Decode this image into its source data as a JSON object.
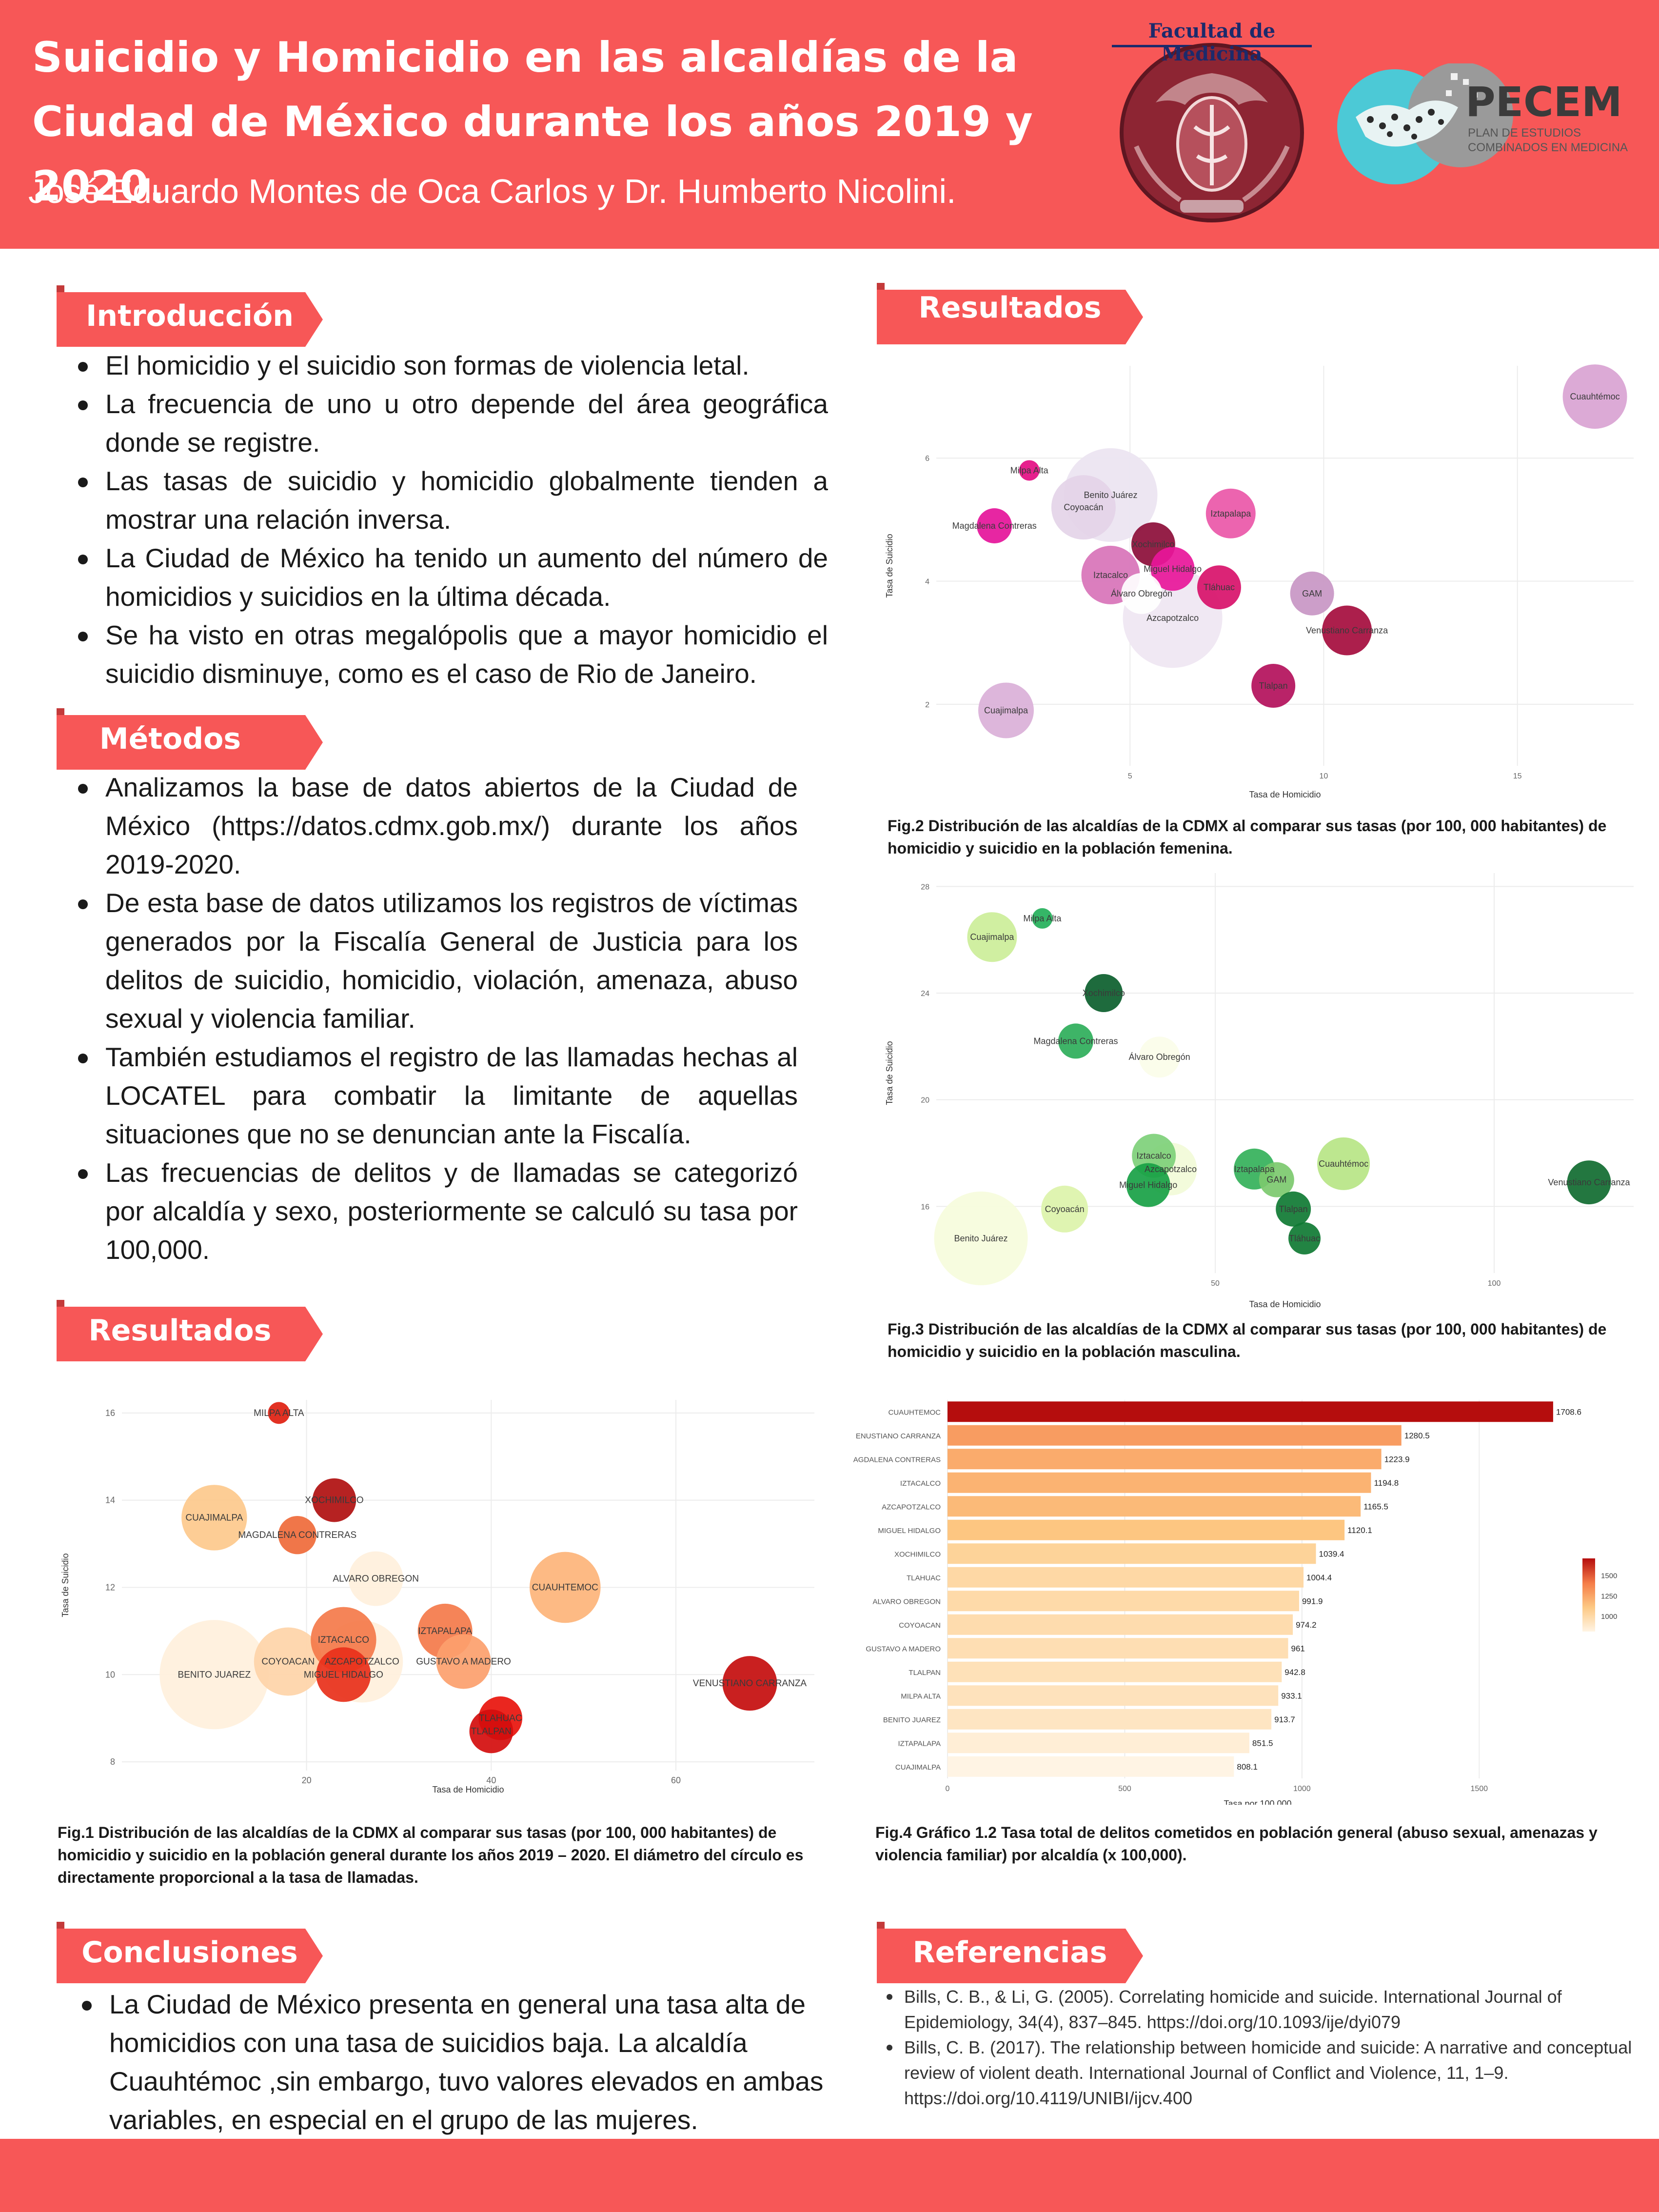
{
  "header": {
    "title_line1": "Suicidio y Homicidio en las alcaldías de la",
    "title_line2": "Ciudad de México durante los años 2019 y 2020.",
    "authors": "José Eduardo Montes de Oca Carlos y Dr. Humberto Nicolini.",
    "logo_left_text": "Facultad de Medicina",
    "logo_right_title": "PECEM",
    "logo_right_sub": "PLAN DE ESTUDIOS COMBINADOS EN MEDICINA"
  },
  "introduccion": {
    "heading": "Introducción",
    "items": [
      "El homicidio y el suicidio son formas de violencia letal.",
      "La frecuencia de uno u otro depende del área geográfica donde se registre.",
      "Las tasas de suicidio y homicidio globalmente tienden a mostrar una relación inversa.",
      "La Ciudad de México ha tenido un aumento del número de homicidios y suicidios en la última década.",
      "Se ha visto en otras megalópolis que a mayor homicidio el suicidio disminuye, como es el caso de Rio de Janeiro."
    ]
  },
  "metodos": {
    "heading": "Métodos",
    "items": [
      "Analizamos la base de datos abiertos de la Ciudad de México (https://datos.cdmx.gob.mx/) durante los años 2019-2020.",
      "De esta base de datos utilizamos los registros de víctimas generados por la Fiscalía General de Justicia para los delitos de suicidio, homicidio, violación, amenaza, abuso sexual y violencia familiar.",
      "También estudiamos el registro de las llamadas hechas al LOCATEL para combatir la limitante de aquellas situaciones que no se denuncian ante la Fiscalía.",
      "Las frecuencias de delitos y de llamadas se categorizó por alcaldía y sexo, posteriormente se calculó su tasa por 100,000."
    ]
  },
  "resultados_left": {
    "heading": "Resultados"
  },
  "resultados_right": {
    "heading": "Resultados"
  },
  "conclusiones": {
    "heading": "Conclusiones",
    "items": [
      "La Ciudad de México presenta en general una tasa alta de homicidios con una tasa de suicidios baja. La alcaldía Cuauhtémoc ,sin embargo, tuvo valores elevados en ambas variables, en especial en el grupo de las mujeres."
    ]
  },
  "referencias": {
    "heading": "Referencias",
    "items": [
      "Bills, C. B., & Li, G. (2005). Correlating homicide and suicide. International Journal of Epidemiology, 34(4), 837–845. https://doi.org/10.1093/ije/dyi079",
      "Bills, C. B. (2017). The relationship between homicide and suicide: A narrative and conceptual review of violent death. International Journal of Conflict and Violence, 11, 1–9. https://doi.org/10.4119/UNIBI/ijcv.400"
    ]
  },
  "captions": {
    "fig1": "Fig.1 Distribución de las alcaldías de la CDMX al comparar sus tasas (por 100, 000 habitantes) de homicidio y suicidio en la población general durante los años 2019 – 2020. El diámetro del círculo es directamente proporcional a la tasa de llamadas.",
    "fig2": "Fig.2 Distribución de las alcaldías de la CDMX al comparar sus tasas (por 100, 000 habitantes) de homicidio y suicidio en la población femenina.",
    "fig3": "Fig.3 Distribución de las alcaldías de la CDMX al comparar sus tasas (por 100, 000 habitantes) de homicidio y suicidio en la población masculina.",
    "fig4": "Fig.4 Gráfico 1.2 Tasa total de delitos cometidos en población general (abuso sexual, amenazas y violencia familiar) por alcaldía (x 100,000)."
  },
  "chart_data": [
    {
      "id": "fig1",
      "type": "scatter",
      "xlabel": "Tasa de Homicidio",
      "ylabel": "Tasa de Suicidio",
      "xlim": [
        0,
        75
      ],
      "ylim": [
        7.8,
        16.3
      ],
      "xticks": [
        20,
        40,
        60
      ],
      "yticks": [
        8,
        10,
        12,
        14,
        16
      ],
      "grid": true,
      "points": [
        {
          "label": "MILPA ALTA",
          "x": 17,
          "y": 16.0,
          "size": 0.8,
          "color": "#e01f10"
        },
        {
          "label": "XOCHIMILCO",
          "x": 23,
          "y": 14.0,
          "size": 1.6,
          "color": "#b00f0f"
        },
        {
          "label": "CUAJIMALPA",
          "x": 10,
          "y": 13.6,
          "size": 2.4,
          "color": "#fdc98c"
        },
        {
          "label": "MAGDALENA CONTRERAS",
          "x": 19,
          "y": 13.2,
          "size": 1.4,
          "color": "#ef6a3a"
        },
        {
          "label": "ALVARO OBREGON",
          "x": 27.5,
          "y": 12.2,
          "size": 2.0,
          "color": "#fff0dc"
        },
        {
          "label": "CUAUHTEMOC",
          "x": 48,
          "y": 12.0,
          "size": 2.6,
          "color": "#fdb47a"
        },
        {
          "label": "IZTAPALAPA",
          "x": 35,
          "y": 11.0,
          "size": 2.0,
          "color": "#f4794a"
        },
        {
          "label": "IZTACALCO",
          "x": 24,
          "y": 10.8,
          "size": 2.4,
          "color": "#f4794a"
        },
        {
          "label": "GUSTAVO A MADERO",
          "x": 37,
          "y": 10.3,
          "size": 2.0,
          "color": "#fca06c"
        },
        {
          "label": "COYOACAN",
          "x": 18,
          "y": 10.3,
          "size": 2.5,
          "color": "#fed4a8"
        },
        {
          "label": "AZCAPOTZALCO",
          "x": 26,
          "y": 10.3,
          "size": 3.0,
          "color": "#fff0dc"
        },
        {
          "label": "MIGUEL HIDALGO",
          "x": 24,
          "y": 10.0,
          "size": 2.0,
          "color": "#e8301a"
        },
        {
          "label": "BENITO JUAREZ",
          "x": 10,
          "y": 10.0,
          "size": 4.0,
          "color": "#fff0dc"
        },
        {
          "label": "VENUSTIANO CARRANZA",
          "x": 68,
          "y": 9.8,
          "size": 2.0,
          "color": "#c40d0d"
        },
        {
          "label": "TLAHUAC",
          "x": 41,
          "y": 9.0,
          "size": 1.6,
          "color": "#e8140c"
        },
        {
          "label": "TLALPAN",
          "x": 40,
          "y": 8.7,
          "size": 1.6,
          "color": "#d40d0d"
        }
      ]
    },
    {
      "id": "fig2",
      "type": "scatter",
      "xlabel": "Tasa de Homicidio",
      "ylabel": "Tasa de Suicidio",
      "xlim": [
        0,
        18
      ],
      "ylim": [
        1.0,
        7.5
      ],
      "xticks": [
        5,
        10,
        15
      ],
      "yticks": [
        2,
        4,
        6
      ],
      "grid": true,
      "points": [
        {
          "label": "Cuauhtémoc",
          "x": 17.0,
          "y": 7.0,
          "size": 2.2,
          "color": "#d9a3d3"
        },
        {
          "label": "Milpa Alta",
          "x": 2.4,
          "y": 5.8,
          "size": 0.7,
          "color": "#e40d83"
        },
        {
          "label": "Benito Juárez",
          "x": 4.5,
          "y": 5.4,
          "size": 3.2,
          "color": "#ece4f1"
        },
        {
          "label": "Coyoacán",
          "x": 3.8,
          "y": 5.2,
          "size": 2.2,
          "color": "#e4d4e8"
        },
        {
          "label": "Iztapalapa",
          "x": 7.6,
          "y": 5.1,
          "size": 1.7,
          "color": "#ea57a8"
        },
        {
          "label": "Magdalena Contreras",
          "x": 1.5,
          "y": 4.9,
          "size": 1.2,
          "color": "#e5149a"
        },
        {
          "label": "Xochimilco",
          "x": 5.6,
          "y": 4.6,
          "size": 1.5,
          "color": "#8c0d38"
        },
        {
          "label": "Miguel Hidalgo",
          "x": 6.1,
          "y": 4.2,
          "size": 1.5,
          "color": "#e8169a"
        },
        {
          "label": "Iztacalco",
          "x": 4.5,
          "y": 4.1,
          "size": 2.0,
          "color": "#d873b9"
        },
        {
          "label": "Tláhuac",
          "x": 7.3,
          "y": 3.9,
          "size": 1.5,
          "color": "#d8116a"
        },
        {
          "label": "GAM",
          "x": 9.7,
          "y": 3.8,
          "size": 1.5,
          "color": "#c896c4"
        },
        {
          "label": "Álvaro Obregón",
          "x": 5.3,
          "y": 3.8,
          "size": 1.4,
          "color": "#ffffff"
        },
        {
          "label": "Azcapotzalco",
          "x": 6.1,
          "y": 3.4,
          "size": 3.4,
          "color": "#efe6f2"
        },
        {
          "label": "Venustiano Carranza",
          "x": 10.6,
          "y": 3.2,
          "size": 1.7,
          "color": "#a50c3d"
        },
        {
          "label": "Tlalpan",
          "x": 8.7,
          "y": 2.3,
          "size": 1.5,
          "color": "#b3105b"
        },
        {
          "label": "Cuajimalpa",
          "x": 1.8,
          "y": 1.9,
          "size": 1.9,
          "color": "#dab0d8"
        }
      ]
    },
    {
      "id": "fig3",
      "type": "scatter",
      "xlabel": "Tasa de Homicidio",
      "ylabel": "Tasa de Suicidio",
      "xlim": [
        0,
        125
      ],
      "ylim": [
        13.5,
        28.5
      ],
      "xticks": [
        50,
        100
      ],
      "yticks": [
        16,
        20,
        24,
        28
      ],
      "grid": true,
      "points": [
        {
          "label": "Milpa Alta",
          "x": 19,
          "y": 26.8,
          "size": 0.7,
          "color": "#24b05a"
        },
        {
          "label": "Cuajimalpa",
          "x": 10,
          "y": 26.1,
          "size": 1.7,
          "color": "#ccee99"
        },
        {
          "label": "Xochimilco",
          "x": 30,
          "y": 24.0,
          "size": 1.3,
          "color": "#0b5e2c"
        },
        {
          "label": "Magdalena Contreras",
          "x": 25,
          "y": 22.2,
          "size": 1.2,
          "color": "#2eae5a"
        },
        {
          "label": "Álvaro Obregón",
          "x": 40,
          "y": 21.6,
          "size": 1.4,
          "color": "#fbfde9"
        },
        {
          "label": "Iztacalco",
          "x": 39,
          "y": 17.9,
          "size": 1.5,
          "color": "#7ed07a"
        },
        {
          "label": "Azcapotzalco",
          "x": 42,
          "y": 17.4,
          "size": 1.8,
          "color": "#f2fbd8"
        },
        {
          "label": "Iztapalapa",
          "x": 57,
          "y": 17.4,
          "size": 1.4,
          "color": "#34b15a"
        },
        {
          "label": "GAM",
          "x": 61,
          "y": 17.0,
          "size": 1.2,
          "color": "#7cc96e"
        },
        {
          "label": "Cuauhtémoc",
          "x": 73,
          "y": 17.6,
          "size": 1.8,
          "color": "#b7e585"
        },
        {
          "label": "Venustiano Carranza",
          "x": 117,
          "y": 16.9,
          "size": 1.5,
          "color": "#106b30"
        },
        {
          "label": "Miguel Hidalgo",
          "x": 38,
          "y": 16.8,
          "size": 1.5,
          "color": "#18a145"
        },
        {
          "label": "Coyoacán",
          "x": 23,
          "y": 15.9,
          "size": 1.6,
          "color": "#dcf3aa"
        },
        {
          "label": "Tlalpan",
          "x": 64,
          "y": 15.9,
          "size": 1.2,
          "color": "#0f7a33"
        },
        {
          "label": "Benito Juárez",
          "x": 8,
          "y": 14.8,
          "size": 3.2,
          "color": "#f6fcdc"
        },
        {
          "label": "Tláhuac",
          "x": 66,
          "y": 14.8,
          "size": 1.1,
          "color": "#0f7a33"
        }
      ]
    },
    {
      "id": "fig4",
      "type": "bar",
      "orientation": "horizontal",
      "xlabel": "Tasa por 100,000",
      "xlim": [
        0,
        1750
      ],
      "xticks": [
        0,
        500,
        1000,
        1500
      ],
      "legend": "right",
      "legend_ticks": [
        1000,
        1250,
        1500
      ],
      "categories": [
        "CUAUHTEMOC",
        "VENUSTIANO CARRANZA",
        "MAGDALENA CONTRERAS",
        "IZTACALCO",
        "AZCAPOTZALCO",
        "MIGUEL HIDALGO",
        "XOCHIMILCO",
        "TLAHUAC",
        "ALVARO OBREGON",
        "COYOACAN",
        "GUSTAVO A MADERO",
        "TLALPAN",
        "MILPA ALTA",
        "BENITO JUAREZ",
        "IZTAPALAPA",
        "CUAJIMALPA"
      ],
      "category_labels": [
        "CUAUHTEMOC",
        "ENUSTIANO CARRANZA",
        "AGDALENA CONTRERAS",
        "IZTACALCO",
        "AZCAPOTZALCO",
        "MIGUEL HIDALGO",
        "XOCHIMILCO",
        "TLAHUAC",
        "ALVARO OBREGON",
        "COYOACAN",
        "GUSTAVO A MADERO",
        "TLALPAN",
        "MILPA ALTA",
        "BENITO JUAREZ",
        "IZTAPALAPA",
        "CUAJIMALPA"
      ],
      "values": [
        1708.6,
        1280.5,
        1223.9,
        1194.8,
        1165.5,
        1120.1,
        1039.4,
        1004.4,
        991.9,
        974.2,
        961,
        942.8,
        933.1,
        913.7,
        851.5,
        808.1
      ],
      "value_labels": [
        "1708.6",
        "1280.5",
        "1223.9",
        "1194.8",
        "1165.5",
        "1120.1",
        "1039.4",
        "1004.4",
        "991.9",
        "974.2",
        "961",
        "942.8",
        "933.1",
        "913.7",
        "851.5",
        "808.1"
      ]
    }
  ]
}
